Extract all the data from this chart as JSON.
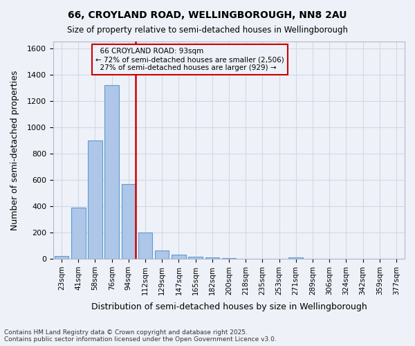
{
  "title": "66, CROYLAND ROAD, WELLINGBOROUGH, NN8 2AU",
  "subtitle": "Size of property relative to semi-detached houses in Wellingborough",
  "xlabel": "Distribution of semi-detached houses by size in Wellingborough",
  "ylabel": "Number of semi-detached properties",
  "categories": [
    "23sqm",
    "41sqm",
    "58sqm",
    "76sqm",
    "94sqm",
    "112sqm",
    "129sqm",
    "147sqm",
    "165sqm",
    "182sqm",
    "200sqm",
    "218sqm",
    "235sqm",
    "253sqm",
    "271sqm",
    "289sqm",
    "306sqm",
    "324sqm",
    "342sqm",
    "359sqm",
    "377sqm"
  ],
  "values": [
    20,
    390,
    900,
    1320,
    570,
    200,
    65,
    30,
    15,
    10,
    5,
    0,
    0,
    0,
    10,
    0,
    0,
    0,
    0,
    0,
    0
  ],
  "bar_color": "#aec6e8",
  "bar_edge_color": "#5b9bd5",
  "property_line_x": 4.425,
  "property_line_label": "66 CROYLAND ROAD: 93sqm",
  "smaller_pct": "72%",
  "smaller_count": "2,506",
  "larger_pct": "27%",
  "larger_count": "929",
  "annotation_box_color": "#cc0000",
  "ylim": [
    0,
    1650
  ],
  "yticks": [
    0,
    200,
    400,
    600,
    800,
    1000,
    1200,
    1400,
    1600
  ],
  "grid_color": "#d0d8e8",
  "bg_color": "#eef2f8",
  "footer_line1": "Contains HM Land Registry data © Crown copyright and database right 2025.",
  "footer_line2": "Contains public sector information licensed under the Open Government Licence v3.0."
}
